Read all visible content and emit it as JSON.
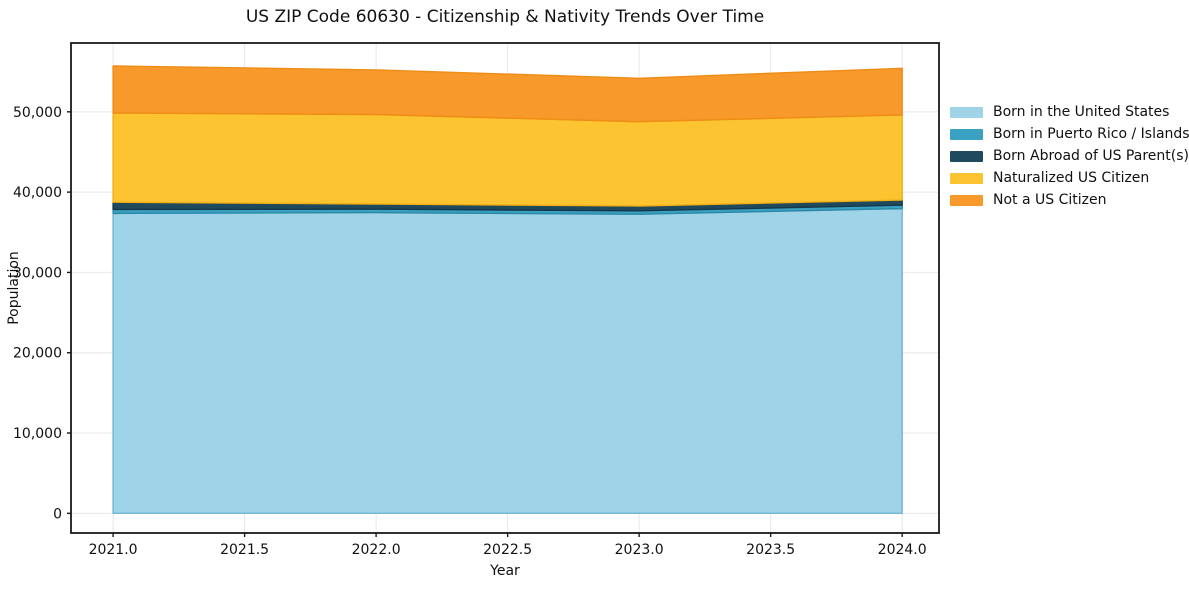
{
  "chart_data": {
    "type": "area",
    "stacked": true,
    "title": "US ZIP Code 60630 - Citizenship & Nativity Trends Over Time",
    "xlabel": "Year",
    "ylabel": "Population",
    "x": [
      2021,
      2022,
      2023,
      2024
    ],
    "series": [
      {
        "name": "Born in the United States",
        "color": "#9fd3e8",
        "edge": "#6fb5d6",
        "values": [
          37350,
          37450,
          37250,
          37950
        ]
      },
      {
        "name": "Born in Puerto Rico / Islands",
        "color": "#3aa1c2",
        "edge": "#2b89a6",
        "values": [
          500,
          420,
          420,
          420
        ]
      },
      {
        "name": "Born Abroad of US Parent(s)",
        "color": "#1f4a5e",
        "edge": "#16394a",
        "values": [
          900,
          650,
          600,
          650
        ]
      },
      {
        "name": "Naturalized US Citizen",
        "color": "#fdc432",
        "edge": "#f2ae14",
        "values": [
          11100,
          11150,
          10500,
          10600
        ]
      },
      {
        "name": "Not a US Citizen",
        "color": "#f8992b",
        "edge": "#ee8c15",
        "values": [
          5850,
          5550,
          5400,
          5800
        ]
      }
    ],
    "totals": [
      55700,
      55220,
      54170,
      55420
    ],
    "xlim": [
      2020.84,
      2024.14
    ],
    "ylim": [
      -2450,
      58570
    ],
    "xticks": [
      2021.0,
      2021.5,
      2022.0,
      2022.5,
      2023.0,
      2023.5,
      2024.0
    ],
    "xtick_labels": [
      "2021.0",
      "2021.5",
      "2022.0",
      "2022.5",
      "2023.0",
      "2023.5",
      "2024.0"
    ],
    "yticks": [
      0,
      10000,
      20000,
      30000,
      40000,
      50000
    ],
    "ytick_labels": [
      "0",
      "10,000",
      "20,000",
      "30,000",
      "40,000",
      "50,000"
    ],
    "grid": true,
    "legend_position": "right",
    "colors": {
      "grid": "#e7e7e7",
      "spine": "#1a1a1a",
      "background": "#ffffff"
    }
  }
}
